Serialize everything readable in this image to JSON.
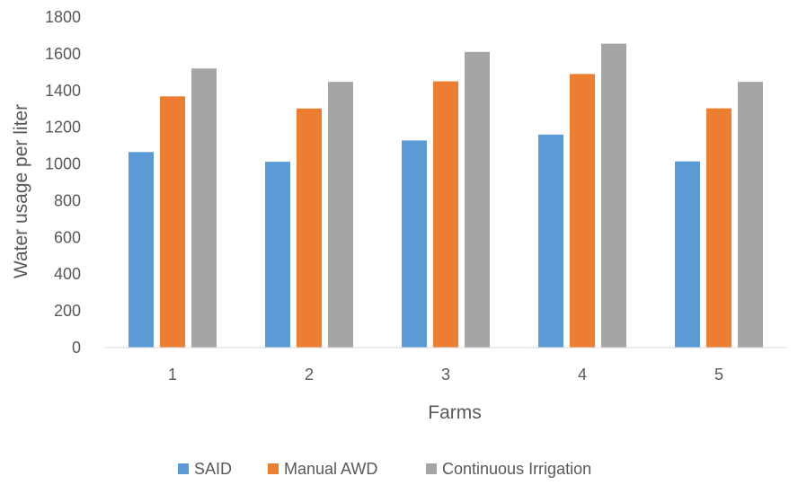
{
  "chart_data": {
    "type": "bar",
    "categories": [
      "1",
      "2",
      "3",
      "4",
      "5"
    ],
    "series": [
      {
        "name": "SAID",
        "color": "#5B9BD5",
        "values": [
          1065,
          1012,
          1128,
          1160,
          1014
        ]
      },
      {
        "name": "Manual AWD",
        "color": "#ED7D31",
        "values": [
          1368,
          1302,
          1450,
          1490,
          1303
        ]
      },
      {
        "name": "Continuous Irrigation",
        "color": "#A5A5A5",
        "values": [
          1520,
          1447,
          1610,
          1655,
          1447
        ]
      }
    ],
    "xlabel": "Farms",
    "ylabel": "Water usage per liter",
    "ylim": [
      0,
      1800
    ],
    "yticks": [
      0,
      200,
      400,
      600,
      800,
      1000,
      1200,
      1400,
      1600,
      1800
    ],
    "grid": false,
    "legend_position": "bottom"
  }
}
